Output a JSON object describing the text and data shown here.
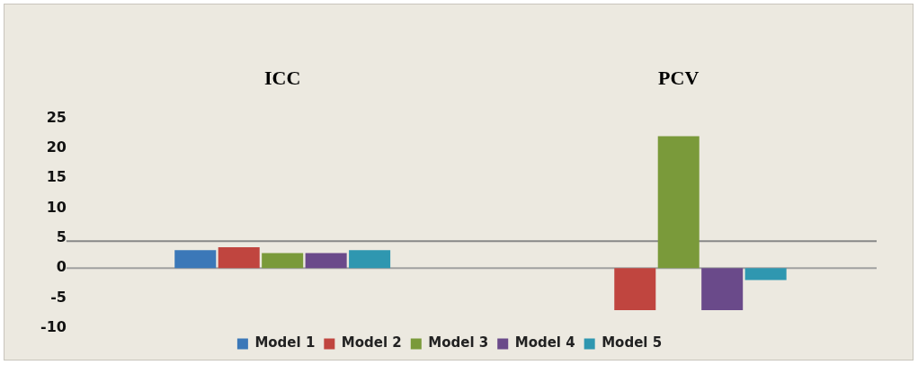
{
  "chart_data": {
    "type": "bar",
    "categories": [
      "ICC",
      "PCV"
    ],
    "series": [
      {
        "name": "Model 1",
        "color": "#3b78b8",
        "values": [
          3,
          null
        ]
      },
      {
        "name": "Model 2",
        "color": "#c0453f",
        "values": [
          3.5,
          -7
        ]
      },
      {
        "name": "Model 3",
        "color": "#7a9a3a",
        "values": [
          2.5,
          22
        ]
      },
      {
        "name": "Model 4",
        "color": "#6a4a8a",
        "values": [
          2.5,
          -7
        ]
      },
      {
        "name": "Model 5",
        "color": "#2f97b0",
        "values": [
          3,
          -2
        ]
      }
    ],
    "ylim": [
      -10,
      25
    ],
    "yticks": [
      -10,
      -5,
      0,
      5,
      10,
      15,
      20,
      25
    ],
    "ref_lines": [
      {
        "axis": "y",
        "value": 0,
        "color": "#a0a0a0"
      },
      {
        "axis": "y",
        "value": 4.5,
        "color": "#888888"
      }
    ],
    "grid": false,
    "legend": "bottom"
  }
}
